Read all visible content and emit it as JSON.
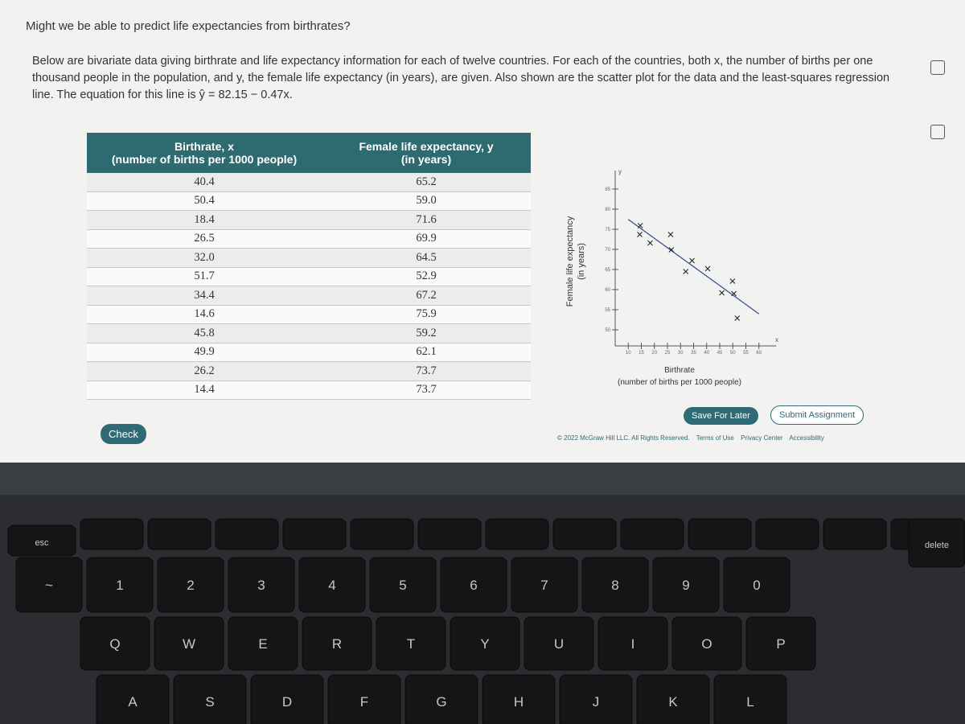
{
  "question": "Might we be able to predict life expectancies from birthrates?",
  "intro": "Below are bivariate data giving birthrate and life expectancy information for each of twelve countries. For each of the countries, both x, the number of births per one thousand people in the population, and y, the female life expectancy (in years), are given. Also shown are the scatter plot for the data and the least-squares regression line. The equation for this line is ŷ = 82.15 − 0.47x.",
  "table": {
    "headers": [
      [
        "Birthrate, x",
        "(number of births per 1000 people)"
      ],
      [
        "Female life expectancy, y",
        "(in years)"
      ]
    ],
    "rows": [
      [
        "40.4",
        "65.2"
      ],
      [
        "50.4",
        "59.0"
      ],
      [
        "18.4",
        "71.6"
      ],
      [
        "26.5",
        "69.9"
      ],
      [
        "32.0",
        "64.5"
      ],
      [
        "51.7",
        "52.9"
      ],
      [
        "34.4",
        "67.2"
      ],
      [
        "14.6",
        "75.9"
      ],
      [
        "45.8",
        "59.2"
      ],
      [
        "49.9",
        "62.1"
      ],
      [
        "26.2",
        "73.7"
      ],
      [
        "14.4",
        "73.7"
      ]
    ]
  },
  "chart_data": {
    "type": "scatter",
    "y_label": [
      "Female life expectancy",
      "(in years)"
    ],
    "x_label": [
      "Birthrate",
      "(number of births per 1000 people)"
    ],
    "x_axis_letter": "x",
    "y_axis_letter": "y",
    "x": [
      40.4,
      50.4,
      18.4,
      26.5,
      32.0,
      51.7,
      34.4,
      14.6,
      45.8,
      49.9,
      26.2,
      14.4
    ],
    "y": [
      65.2,
      59.0,
      71.6,
      69.9,
      64.5,
      52.9,
      67.2,
      75.9,
      59.2,
      62.1,
      73.7,
      73.7
    ],
    "regression": {
      "intercept": 82.15,
      "slope": -0.47
    },
    "xlim": [
      5,
      65
    ],
    "ylim": [
      46,
      88
    ],
    "xticks": [
      10,
      15,
      20,
      25,
      30,
      35,
      40,
      45,
      50,
      55,
      60
    ],
    "yticks": [
      50,
      55,
      60,
      65,
      70,
      75,
      80,
      85
    ],
    "color": "#1a1a1a"
  },
  "buttons": {
    "check": "Check",
    "save": "Save For Later",
    "submit": "Submit Assignment"
  },
  "footer": {
    "copyright": "© 2022 McGraw Hill LLC. All Rights Reserved.",
    "links": [
      "Terms of Use",
      "Privacy Center",
      "Accessibility"
    ]
  },
  "keyboard": {
    "esc": "esc",
    "delete": "delete",
    "rows": [
      [
        "~",
        "1",
        "2",
        "3",
        "4",
        "5",
        "6",
        "7",
        "8",
        "9",
        "0"
      ],
      [
        "Q",
        "W",
        "E",
        "R",
        "T",
        "Y",
        "U",
        "I",
        "O",
        "P"
      ],
      [
        "A",
        "S",
        "D",
        "F",
        "G",
        "H",
        "J",
        "K",
        "L"
      ]
    ]
  }
}
